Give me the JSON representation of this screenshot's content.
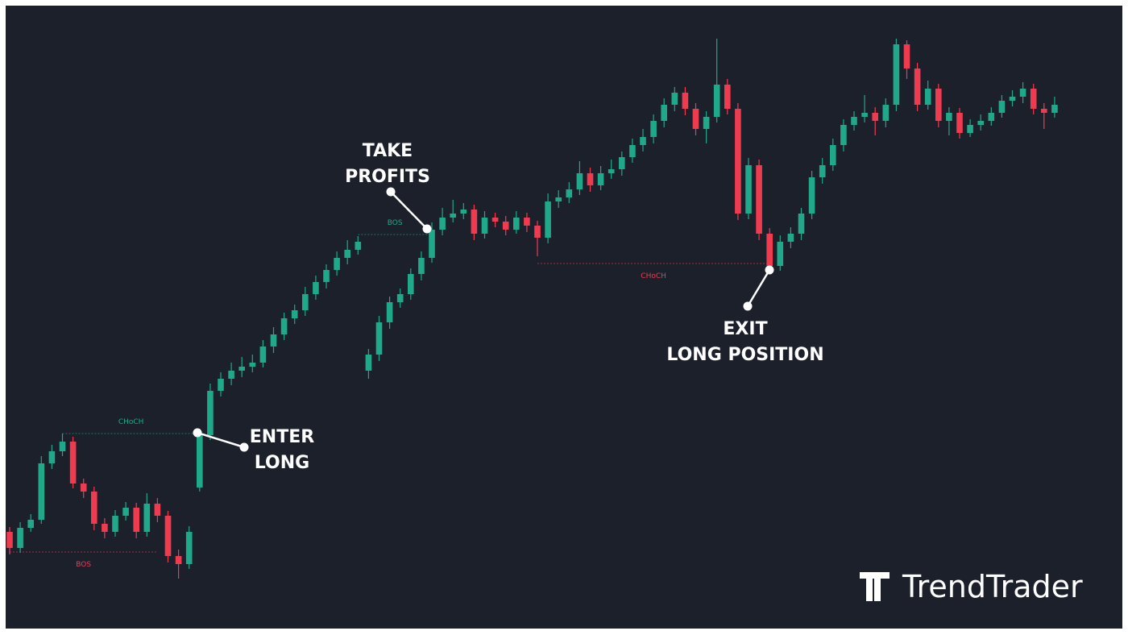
{
  "chart_data": {
    "type": "candlestick",
    "ylim": [
      0,
      788
    ],
    "up_color": "#1fa88a",
    "down_color": "#ef3b50",
    "ohlc": [
      [
        128,
        134,
        100,
        108
      ],
      [
        108,
        140,
        102,
        133
      ],
      [
        133,
        150,
        128,
        143
      ],
      [
        143,
        222,
        138,
        213
      ],
      [
        213,
        236,
        206,
        228
      ],
      [
        228,
        250,
        222,
        240
      ],
      [
        240,
        246,
        182,
        188
      ],
      [
        188,
        194,
        170,
        178
      ],
      [
        178,
        184,
        130,
        138
      ],
      [
        138,
        145,
        120,
        128
      ],
      [
        128,
        155,
        122,
        148
      ],
      [
        148,
        165,
        142,
        158
      ],
      [
        158,
        164,
        120,
        128
      ],
      [
        128,
        176,
        122,
        163
      ],
      [
        163,
        170,
        140,
        148
      ],
      [
        148,
        154,
        90,
        98
      ],
      [
        98,
        106,
        70,
        88
      ],
      [
        88,
        135,
        82,
        128
      ],
      [
        183,
        256,
        178,
        248
      ],
      [
        248,
        312,
        242,
        303
      ],
      [
        303,
        326,
        296,
        318
      ],
      [
        318,
        338,
        310,
        328
      ],
      [
        328,
        345,
        320,
        333
      ],
      [
        333,
        348,
        326,
        338
      ],
      [
        338,
        366,
        332,
        358
      ],
      [
        358,
        382,
        350,
        373
      ],
      [
        373,
        400,
        366,
        393
      ],
      [
        393,
        410,
        386,
        403
      ],
      [
        403,
        432,
        396,
        423
      ],
      [
        423,
        446,
        416,
        438
      ],
      [
        438,
        460,
        430,
        453
      ],
      [
        453,
        476,
        446,
        468
      ],
      [
        468,
        490,
        460,
        478
      ],
      [
        478,
        495,
        472,
        488
      ],
      [
        328,
        355,
        318,
        348
      ],
      [
        348,
        396,
        340,
        388
      ],
      [
        388,
        420,
        380,
        413
      ],
      [
        413,
        430,
        406,
        423
      ],
      [
        423,
        455,
        416,
        448
      ],
      [
        448,
        476,
        440,
        468
      ],
      [
        468,
        512,
        462,
        503
      ],
      [
        503,
        530,
        496,
        518
      ],
      [
        518,
        540,
        512,
        523
      ],
      [
        523,
        536,
        516,
        528
      ],
      [
        528,
        534,
        490,
        498
      ],
      [
        498,
        526,
        492,
        518
      ],
      [
        518,
        524,
        506,
        513
      ],
      [
        513,
        520,
        496,
        503
      ],
      [
        503,
        526,
        498,
        518
      ],
      [
        518,
        524,
        500,
        508
      ],
      [
        508,
        514,
        470,
        493
      ],
      [
        493,
        548,
        486,
        538
      ],
      [
        538,
        552,
        530,
        543
      ],
      [
        543,
        562,
        536,
        553
      ],
      [
        553,
        588,
        546,
        573
      ],
      [
        573,
        580,
        550,
        558
      ],
      [
        558,
        582,
        552,
        573
      ],
      [
        573,
        590,
        566,
        578
      ],
      [
        578,
        600,
        570,
        593
      ],
      [
        593,
        616,
        586,
        608
      ],
      [
        608,
        628,
        600,
        618
      ],
      [
        618,
        646,
        610,
        638
      ],
      [
        638,
        666,
        630,
        658
      ],
      [
        658,
        680,
        650,
        673
      ],
      [
        673,
        680,
        645,
        653
      ],
      [
        653,
        660,
        620,
        628
      ],
      [
        628,
        650,
        610,
        643
      ],
      [
        643,
        740,
        636,
        683
      ],
      [
        683,
        690,
        646,
        653
      ],
      [
        653,
        660,
        515,
        523
      ],
      [
        523,
        592,
        516,
        583
      ],
      [
        583,
        590,
        490,
        498
      ],
      [
        498,
        505,
        450,
        458
      ],
      [
        458,
        496,
        452,
        488
      ],
      [
        488,
        506,
        480,
        498
      ],
      [
        498,
        530,
        490,
        523
      ],
      [
        523,
        576,
        516,
        568
      ],
      [
        568,
        592,
        560,
        583
      ],
      [
        583,
        616,
        576,
        608
      ],
      [
        608,
        640,
        600,
        633
      ],
      [
        633,
        650,
        626,
        643
      ],
      [
        643,
        670,
        636,
        648
      ],
      [
        648,
        655,
        620,
        638
      ],
      [
        638,
        666,
        630,
        658
      ],
      [
        658,
        740,
        650,
        733
      ],
      [
        733,
        738,
        690,
        703
      ],
      [
        703,
        710,
        650,
        658
      ],
      [
        658,
        688,
        652,
        678
      ],
      [
        678,
        684,
        630,
        638
      ],
      [
        638,
        655,
        620,
        648
      ],
      [
        648,
        654,
        616,
        623
      ],
      [
        623,
        640,
        618,
        633
      ],
      [
        633,
        646,
        626,
        638
      ],
      [
        638,
        655,
        632,
        648
      ],
      [
        648,
        670,
        642,
        663
      ],
      [
        663,
        676,
        656,
        668
      ],
      [
        668,
        686,
        660,
        678
      ],
      [
        678,
        684,
        646,
        653
      ],
      [
        653,
        660,
        628,
        648
      ],
      [
        648,
        668,
        642,
        658
      ]
    ],
    "levels": [
      {
        "label": "BOS",
        "value": 103,
        "start": 0,
        "end": 14,
        "color": "#ef3b50",
        "label_side": "below"
      },
      {
        "label": "CHoCH",
        "value": 250,
        "start": 5,
        "end": 18,
        "color": "#1fa88a",
        "label_side": "above"
      },
      {
        "label": "BOS",
        "value": 497,
        "start": 33,
        "end": 40,
        "color": "#1fa88a",
        "label_side": "above"
      },
      {
        "label": "CHoCH",
        "value": 461,
        "start": 50,
        "end": 72,
        "color": "#ef3b50",
        "label_side": "below"
      }
    ],
    "annotations": [
      {
        "lines": [
          "ENTER",
          "LONG"
        ]
      },
      {
        "lines": [
          "TAKE",
          "PROFITS"
        ]
      },
      {
        "lines": [
          "EXIT",
          "LONG POSITION"
        ]
      }
    ]
  },
  "logo": "TrendTrader"
}
